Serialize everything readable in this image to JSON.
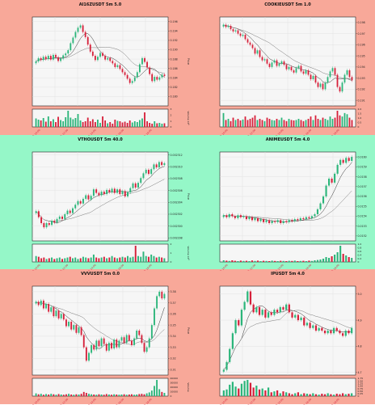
{
  "colors": {
    "band_salmon": "#F8A899",
    "band_mint": "#95F7C8",
    "up": "#2BB57A",
    "down": "#D6203A",
    "ma_fast": "#333333",
    "ma_slow": "#7A7A7A",
    "plot_bg": "#F6F6F6"
  },
  "chart_data": [
    {
      "type": "candlestick",
      "title": "AI16ZUSDT 5m 5.0",
      "ylabel": "Price",
      "volume_label": "Volume  10⁶",
      "ylim": [
        0.178,
        0.197
      ],
      "price_ticks": [
        "0.196",
        "0.194",
        "0.192",
        "0.190",
        "0.188",
        "0.186",
        "0.184",
        "0.182",
        "0.180"
      ],
      "volume_ticks": [
        "3",
        "2",
        "1",
        "0"
      ],
      "x_ticks": [
        "Mar 19, 10:00",
        "Mar 19, 12:00",
        "Mar 19, 14:00",
        "Mar 19, 16:00",
        "Mar 19, 18:00"
      ],
      "close": [
        0.1875,
        0.1882,
        0.1878,
        0.1885,
        0.188,
        0.1887,
        0.1879,
        0.1889,
        0.1884,
        0.1876,
        0.1881,
        0.1888,
        0.1892,
        0.1899,
        0.1914,
        0.1926,
        0.1938,
        0.1947,
        0.1952,
        0.1938,
        0.1927,
        0.1911,
        0.1896,
        0.1887,
        0.1878,
        0.1885,
        0.1893,
        0.1887,
        0.1879,
        0.1882,
        0.1876,
        0.1871,
        0.1863,
        0.1867,
        0.1859,
        0.1852,
        0.1846,
        0.1838,
        0.1829,
        0.1833,
        0.1841,
        0.1852,
        0.1869,
        0.1882,
        0.1874,
        0.1862,
        0.1848,
        0.1833,
        0.1842,
        0.1836,
        0.1841,
        0.1847,
        0.1844
      ],
      "volume": [
        1.05,
        0.9,
        0.8,
        1.1,
        0.65,
        1.3,
        0.7,
        0.95,
        0.6,
        1.25,
        0.85,
        0.7,
        1.2,
        2.0,
        1.15,
        0.95,
        1.1,
        1.6,
        0.8,
        0.6,
        0.7,
        1.15,
        0.7,
        0.95,
        0.6,
        0.9,
        0.5,
        1.3,
        0.8,
        0.45,
        0.6,
        0.4,
        0.9,
        0.75,
        0.7,
        0.55,
        0.65,
        0.5,
        0.8,
        0.55,
        0.7,
        0.6,
        0.85,
        1.05,
        1.8,
        0.7,
        0.5,
        0.4,
        0.7,
        0.45,
        0.5,
        0.4,
        0.45
      ]
    },
    {
      "type": "candlestick",
      "title": "COOKIEUSDT 5m 1.0",
      "ylabel": "Price",
      "volume_label": "Volume  10⁵",
      "ylim": [
        0.1905,
        0.1985
      ],
      "price_ticks": [
        "0.198",
        "0.197",
        "0.196",
        "0.195",
        "0.194",
        "0.193",
        "0.192",
        "0.191"
      ],
      "volume_ticks": [
        "2.0",
        "1.5",
        "1.0",
        "0.5",
        "0"
      ],
      "x_ticks": [
        "Mar 19, 10:00",
        "Mar 19, 12:00",
        "Mar 19, 14:00",
        "Mar 19, 16:00",
        "Mar 19, 18:00"
      ],
      "close": [
        0.1978,
        0.1976,
        0.1977,
        0.1974,
        0.1972,
        0.1973,
        0.197,
        0.1968,
        0.1969,
        0.1965,
        0.1962,
        0.196,
        0.1957,
        0.1952,
        0.1955,
        0.1949,
        0.1946,
        0.1947,
        0.1943,
        0.194,
        0.1944,
        0.1946,
        0.1941,
        0.1943,
        0.1945,
        0.1942,
        0.1938,
        0.194,
        0.1937,
        0.1935,
        0.1939,
        0.1941,
        0.1936,
        0.1934,
        0.1937,
        0.1933,
        0.1929,
        0.1932,
        0.1926,
        0.1922,
        0.1925,
        0.192,
        0.1926,
        0.1931,
        0.1936,
        0.1939,
        0.1933,
        0.1922,
        0.1918,
        0.1926,
        0.1933,
        0.1937,
        0.1931,
        0.1928
      ],
      "volume": [
        0.6,
        0.3,
        0.35,
        0.25,
        0.4,
        0.3,
        0.35,
        0.28,
        0.32,
        0.45,
        0.3,
        0.35,
        0.4,
        0.5,
        0.3,
        0.35,
        0.3,
        0.25,
        0.4,
        0.35,
        0.3,
        0.28,
        0.35,
        0.3,
        0.4,
        0.3,
        0.25,
        0.35,
        0.3,
        0.28,
        0.3,
        0.35,
        0.3,
        0.25,
        0.3,
        0.35,
        0.45,
        0.3,
        0.5,
        0.35,
        0.3,
        0.4,
        0.35,
        0.3,
        0.45,
        0.35,
        0.4,
        0.7,
        0.5,
        0.45,
        0.6,
        0.55,
        0.4,
        0.3
      ]
    },
    {
      "type": "candlestick",
      "title": "VTHOUSDT 5m 40.0",
      "ylabel": "Price",
      "volume_label": "Volume  10⁸",
      "ylim": [
        0.0022975,
        0.0023125
      ],
      "price_ticks": [
        "0.002312",
        "0.002310",
        "0.002308",
        "0.002306",
        "0.002304",
        "0.002302",
        "0.002300",
        "0.002298"
      ],
      "volume_ticks": [
        "2",
        "1",
        "0"
      ],
      "x_ticks": [
        "Mar 19, 10:00",
        "Mar 19, 12:00",
        "Mar 19, 14:00",
        "Mar 19, 16:00",
        "Mar 19, 18:00"
      ],
      "close": [
        0.0023025,
        0.0023015,
        0.0023005,
        0.0022998,
        0.0023005,
        0.0023002,
        0.0023009,
        0.0023006,
        0.0023012,
        0.0023016,
        0.0023012,
        0.002302,
        0.0023026,
        0.0023022,
        0.002303,
        0.0023036,
        0.0023042,
        0.0023038,
        0.0023046,
        0.0023052,
        0.0023045,
        0.0023051,
        0.0023062,
        0.0023056,
        0.0023052,
        0.0023058,
        0.0023054,
        0.0023061,
        0.0023057,
        0.0023063,
        0.0023056,
        0.0023062,
        0.0023054,
        0.0023059,
        0.002305,
        0.0023057,
        0.0023064,
        0.0023072,
        0.0023065,
        0.0023073,
        0.0023081,
        0.0023089,
        0.0023095,
        0.0023088,
        0.0023096,
        0.0023104,
        0.0023099,
        0.0023108,
        0.0023103,
        0.0023106
      ],
      "volume": [
        0.4,
        0.35,
        0.25,
        0.3,
        0.2,
        0.25,
        0.3,
        0.2,
        0.25,
        0.3,
        0.2,
        0.25,
        0.3,
        0.35,
        0.25,
        0.3,
        0.2,
        0.25,
        0.35,
        0.3,
        0.25,
        0.3,
        0.5,
        0.3,
        0.25,
        0.3,
        0.35,
        0.25,
        0.3,
        0.4,
        0.3,
        0.25,
        0.3,
        0.35,
        0.3,
        0.4,
        0.3,
        0.35,
        1.1,
        0.4,
        0.35,
        0.7,
        0.4,
        0.35,
        0.5,
        0.4,
        0.3,
        0.35,
        0.3,
        0.25
      ]
    },
    {
      "type": "candlestick",
      "title": "ANIMEUSDT 5m 4.0",
      "ylabel": "Price",
      "volume_label": "Volume  10⁷",
      "ylim": [
        0.01515,
        0.01605
      ],
      "price_ticks": [
        "0.0160",
        "0.0159",
        "0.0158",
        "0.0157",
        "0.0156",
        "0.0155",
        "0.0154",
        "0.0153",
        "0.0152"
      ],
      "volume_ticks": [
        "1.0",
        "0.8",
        "0.6",
        "0.4",
        "0.2",
        "0"
      ],
      "x_ticks": [
        "Mar 19, 10:00",
        "Mar 19, 12:00",
        "Mar 19, 14:00",
        "Mar 19, 16:00",
        "Mar 19, 18:00"
      ],
      "close": [
        0.01541,
        0.01539,
        0.01542,
        0.0154,
        0.01538,
        0.01541,
        0.01539,
        0.0154,
        0.01537,
        0.01539,
        0.01536,
        0.01538,
        0.01535,
        0.01537,
        0.01534,
        0.01536,
        0.01533,
        0.01535,
        0.01534,
        0.01536,
        0.01533,
        0.01535,
        0.01534,
        0.01536,
        0.01535,
        0.01537,
        0.01536,
        0.01538,
        0.01537,
        0.01539,
        0.01538,
        0.0154,
        0.01542,
        0.01547,
        0.01553,
        0.0156,
        0.01571,
        0.01578,
        0.01574,
        0.01583,
        0.01592,
        0.01597,
        0.01594,
        0.01599,
        0.01596,
        0.016
      ],
      "volume": [
        0.1,
        0.08,
        0.06,
        0.1,
        0.07,
        0.05,
        0.08,
        0.06,
        0.07,
        0.05,
        0.09,
        0.06,
        0.08,
        0.05,
        0.07,
        0.06,
        0.05,
        0.08,
        0.06,
        0.05,
        0.07,
        0.06,
        0.05,
        0.07,
        0.06,
        0.08,
        0.05,
        0.06,
        0.07,
        0.05,
        0.08,
        0.06,
        0.1,
        0.12,
        0.15,
        0.2,
        0.3,
        0.25,
        0.35,
        0.45,
        0.6,
        1.0,
        0.5,
        0.4,
        0.3,
        0.25
      ]
    },
    {
      "type": "candlestick",
      "title": "VVVUSDT 5m 0.0",
      "ylabel": "Price",
      "volume_label": "Volume",
      "ylim": [
        3.305,
        3.385
      ],
      "price_ticks": [
        "3.38",
        "3.37",
        "3.36",
        "3.35",
        "3.34",
        "3.33",
        "3.32",
        "3.31"
      ],
      "volume_ticks": [
        "40000",
        "30000",
        "20000",
        "10000",
        "0"
      ],
      "x_ticks": [
        "Mar 19, 10:00",
        "Mar 19, 12:00",
        "Mar 19, 14:00",
        "Mar 19, 16:00",
        "Mar 19, 18:00"
      ],
      "close": [
        3.371,
        3.368,
        3.372,
        3.365,
        3.369,
        3.362,
        3.366,
        3.358,
        3.363,
        3.356,
        3.36,
        3.355,
        3.349,
        3.353,
        3.346,
        3.35,
        3.343,
        3.348,
        3.341,
        3.33,
        3.318,
        3.325,
        3.332,
        3.328,
        3.336,
        3.331,
        3.338,
        3.333,
        3.327,
        3.334,
        3.329,
        3.337,
        3.33,
        3.336,
        3.339,
        3.334,
        3.341,
        3.336,
        3.332,
        3.338,
        3.345,
        3.341,
        3.334,
        3.326,
        3.33,
        3.338,
        3.35,
        3.365,
        3.376,
        3.38,
        3.374,
        3.378
      ],
      "volume": [
        6000,
        4000,
        5000,
        3000,
        4500,
        3500,
        5000,
        4000,
        3000,
        4500,
        3500,
        3000,
        4000,
        5000,
        3500,
        3000,
        4000,
        3500,
        5000,
        9000,
        7000,
        5000,
        4000,
        3500,
        3000,
        4000,
        3500,
        3000,
        4500,
        3500,
        3000,
        4000,
        3500,
        3000,
        3500,
        4000,
        3000,
        3500,
        4000,
        3000,
        3500,
        4500,
        5000,
        4000,
        6000,
        8000,
        12000,
        22000,
        35000,
        15000,
        9000,
        7000
      ]
    },
    {
      "type": "candlestick",
      "title": "IPUSDT 5m 4.0",
      "ylabel": "Price",
      "volume_label": "Volume  10⁵",
      "ylim": [
        4.69,
        5.03
      ],
      "price_ticks": [
        "5.0",
        "4.9",
        "4.8",
        "4.7"
      ],
      "volume_ticks": [
        "1.75",
        "1.50",
        "1.25",
        "1.00",
        "0.75",
        "0.50",
        "0.25",
        "0"
      ],
      "x_ticks": [
        "Mar 19, 10:00",
        "Mar 19, 12:00",
        "Mar 19, 14:00",
        "Mar 19, 16:00",
        "Mar 19, 18:00"
      ],
      "close": [
        4.71,
        4.74,
        4.79,
        4.85,
        4.9,
        4.88,
        4.94,
        4.97,
        5.01,
        4.96,
        4.93,
        4.95,
        4.92,
        4.94,
        4.91,
        4.93,
        4.92,
        4.94,
        4.93,
        4.95,
        4.94,
        4.96,
        4.93,
        4.91,
        4.92,
        4.9,
        4.91,
        4.88,
        4.89,
        4.87,
        4.88,
        4.86,
        4.87,
        4.86,
        4.85,
        4.86,
        4.85,
        4.87,
        4.86,
        4.85,
        4.84,
        4.86,
        4.85,
        4.87
      ],
      "volume": [
        0.6,
        0.7,
        1.2,
        1.5,
        1.0,
        0.8,
        1.3,
        1.6,
        1.7,
        1.4,
        0.9,
        1.1,
        0.7,
        0.8,
        0.6,
        0.9,
        0.4,
        0.5,
        0.6,
        0.3,
        0.5,
        0.4,
        0.3,
        0.2,
        0.3,
        0.4,
        0.2,
        0.3,
        0.25,
        0.2,
        0.3,
        0.2,
        0.15,
        0.25,
        0.2,
        0.3,
        0.2,
        0.15,
        0.25,
        0.2,
        0.3,
        0.2,
        0.25,
        0.3
      ]
    }
  ]
}
